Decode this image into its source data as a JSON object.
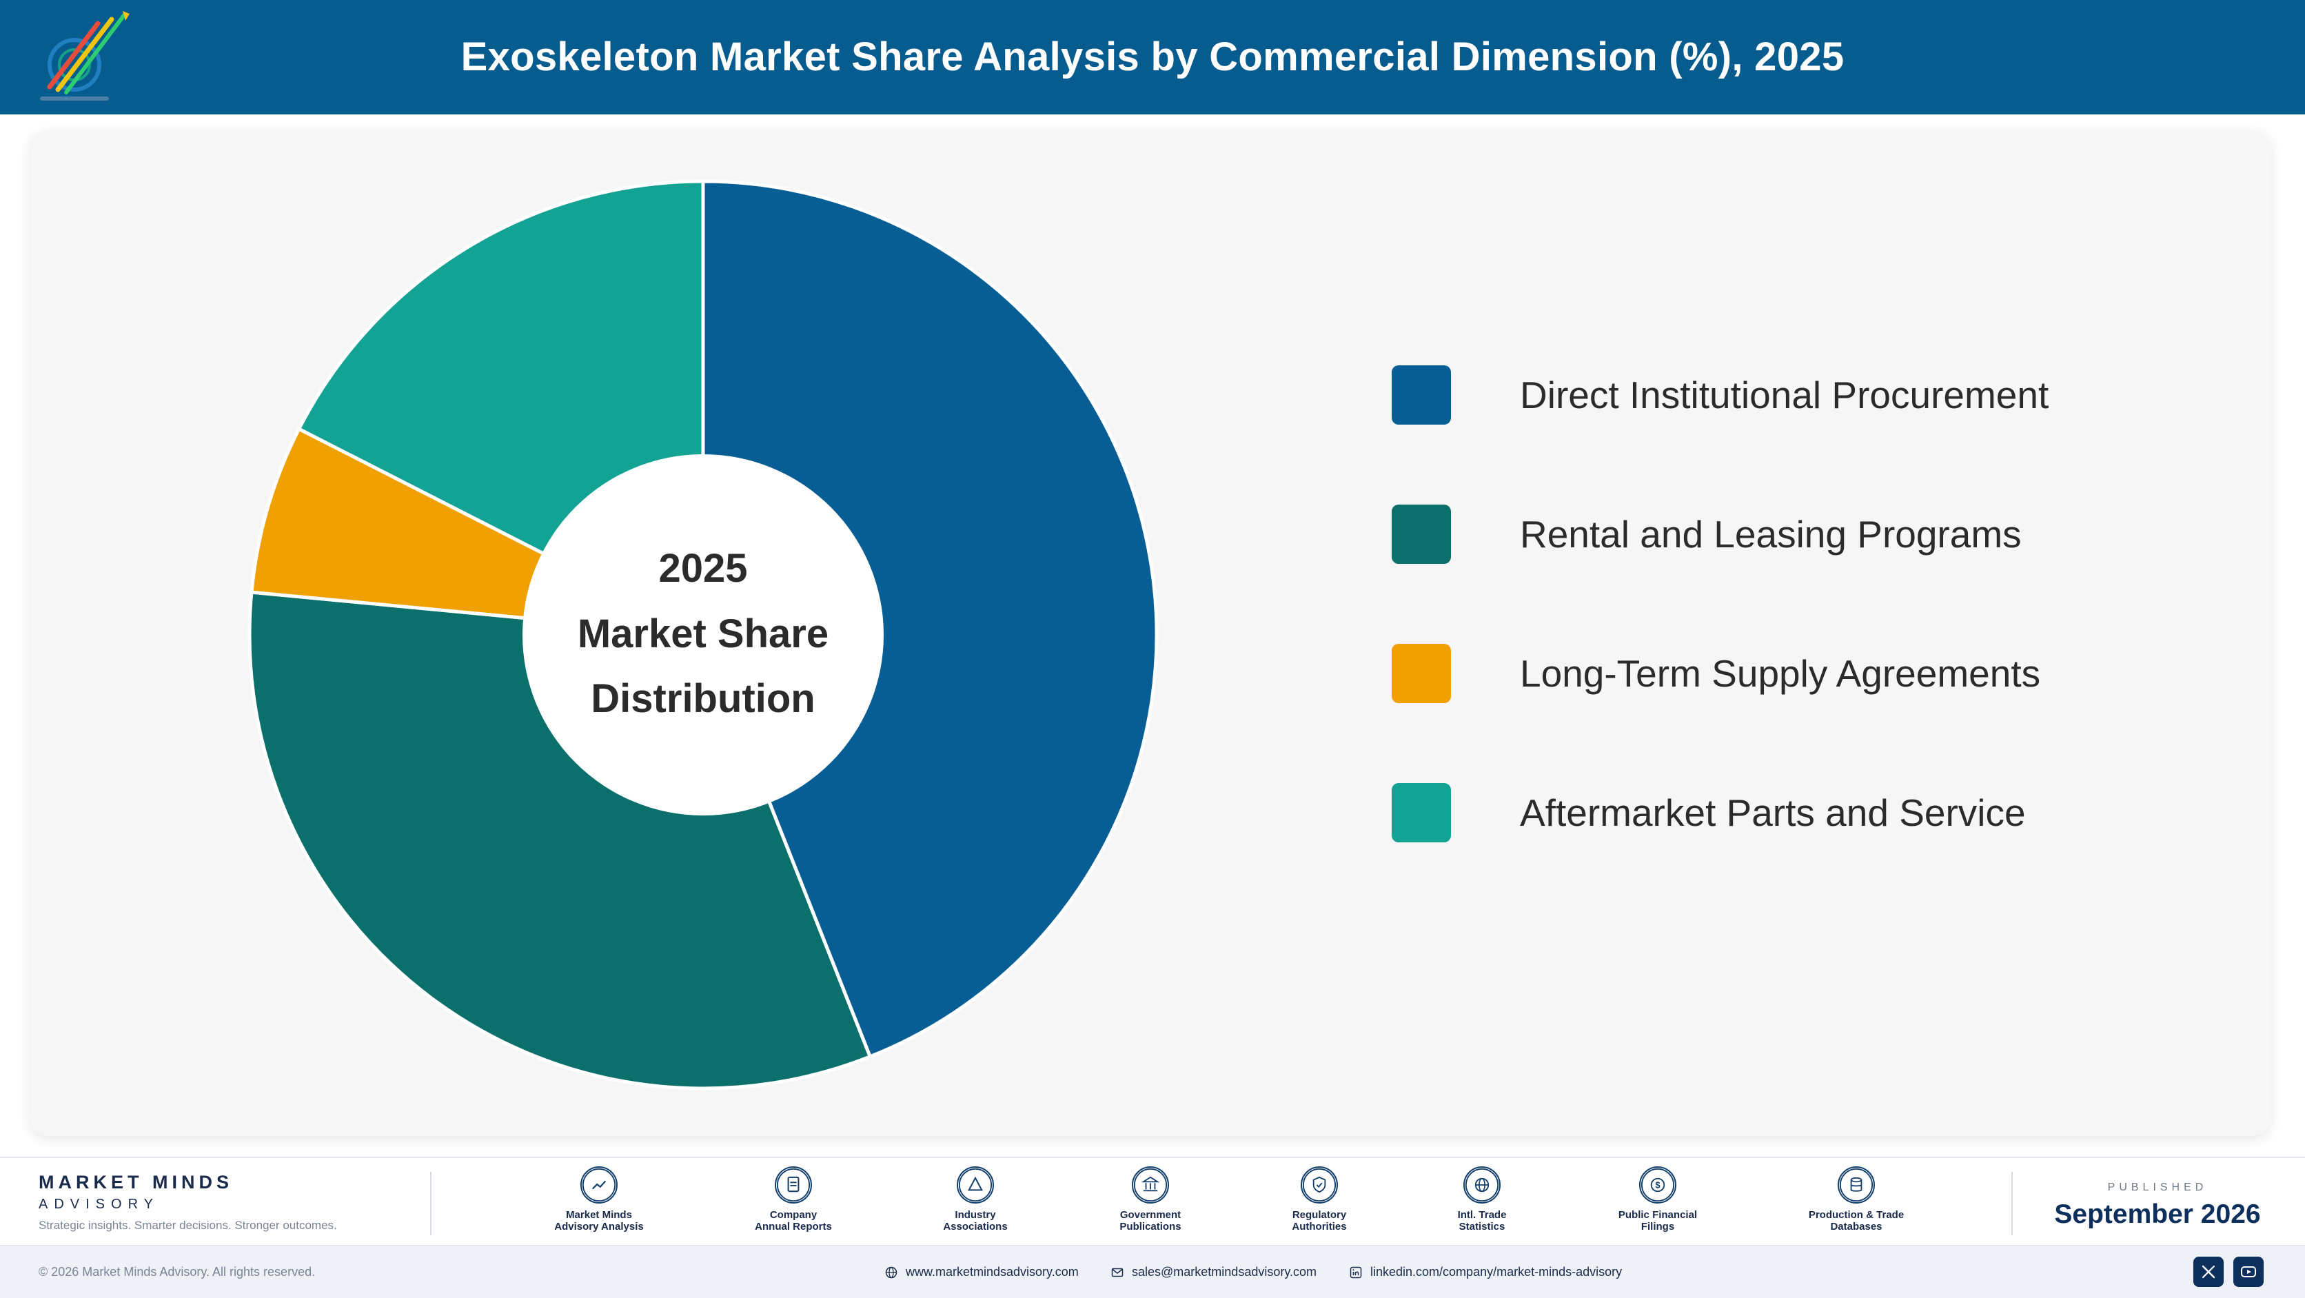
{
  "header": {
    "title": "Exoskeleton Market Share Analysis by Commercial Dimension (%), 2025"
  },
  "chart_data": {
    "type": "pie",
    "variant": "donut",
    "title": "Exoskeleton Market Share Analysis by Commercial Dimension (%), 2025",
    "center_label": [
      "2025",
      "Market Share",
      "Distribution"
    ],
    "categories": [
      "Direct Institutional Procurement",
      "Rental and Leasing Programs",
      "Long-Term Supply Agreements",
      "Aftermarket Parts and Service"
    ],
    "values": [
      44.0,
      32.5,
      6.0,
      17.5
    ],
    "colors": [
      "#075e95",
      "#0b706c",
      "#f0a000",
      "#12a394"
    ],
    "legend_position": "right"
  },
  "footer": {
    "brand_name": "MARKET MINDS",
    "brand_sub": "ADVISORY",
    "tagline": "Strategic insights. Smarter decisions. Stronger outcomes.",
    "sources": [
      {
        "icon": "chart-line-icon",
        "line1": "Market Minds",
        "line2": "Advisory Analysis"
      },
      {
        "icon": "document-icon",
        "line1": "Company",
        "line2": "Annual Reports"
      },
      {
        "icon": "network-icon",
        "line1": "Industry",
        "line2": "Associations"
      },
      {
        "icon": "government-building-icon",
        "line1": "Government",
        "line2": "Publications"
      },
      {
        "icon": "shield-check-icon",
        "line1": "Regulatory",
        "line2": "Authorities"
      },
      {
        "icon": "globe-icon",
        "line1": "Intl. Trade",
        "line2": "Statistics"
      },
      {
        "icon": "dollar-coin-icon",
        "line1": "Public Financial",
        "line2": "Filings"
      },
      {
        "icon": "database-icon",
        "line1": "Production & Trade",
        "line2": "Databases"
      }
    ],
    "published_label": "PUBLISHED",
    "published_date": "September 2026"
  },
  "bottom_bar": {
    "copyright": "© 2026 Market Minds Advisory. All rights reserved.",
    "website": "www.marketmindsadvisory.com",
    "email": "sales@marketmindsadvisory.com",
    "linkedin": "linkedin.com/company/market-minds-advisory"
  }
}
